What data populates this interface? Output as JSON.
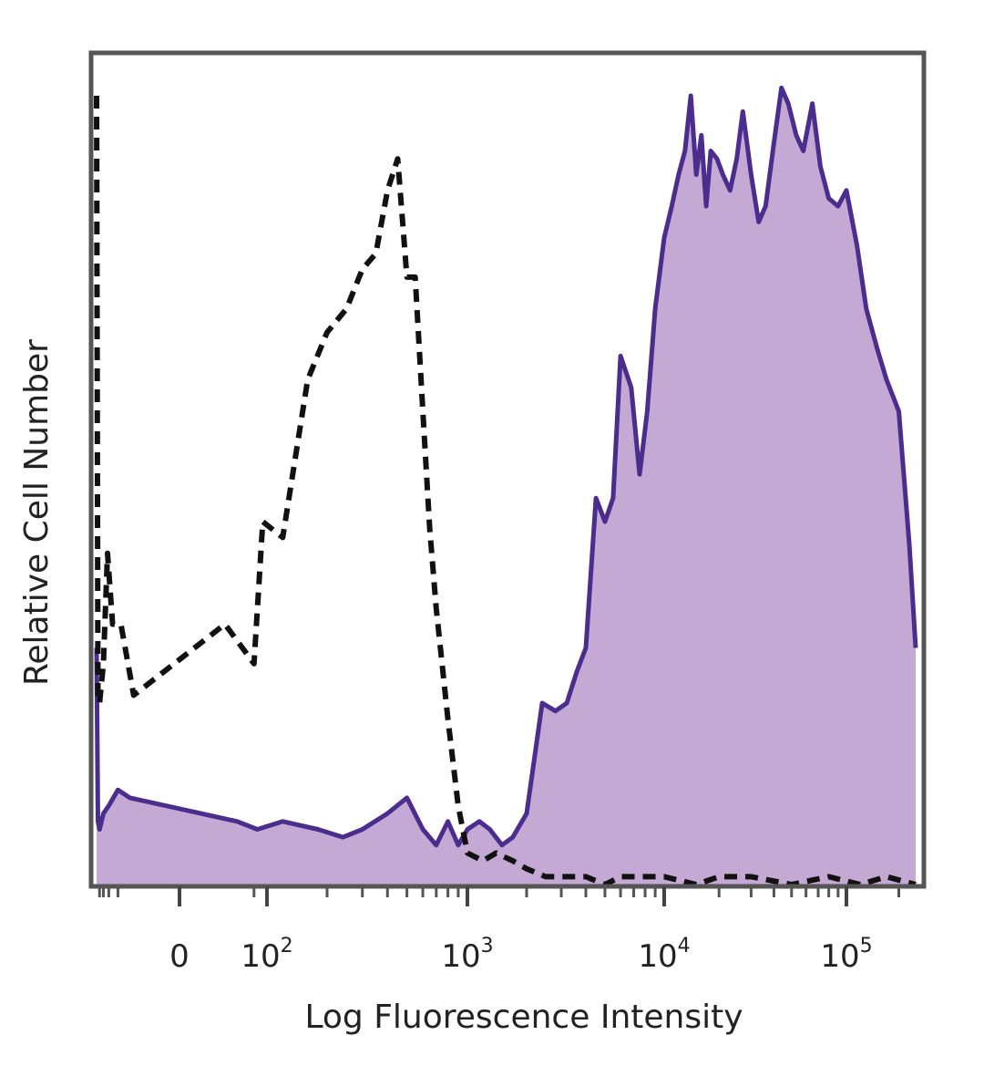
{
  "chart_data": {
    "type": "area",
    "xlabel": "Log Fluorescence Intensity",
    "ylabel": "Relative Cell Number",
    "x_scale": "biexponential",
    "x_ticks": [
      {
        "value": 0,
        "label": "0",
        "exp": ""
      },
      {
        "value": 100,
        "label": "10",
        "exp": "2"
      },
      {
        "value": 1000,
        "label": "10",
        "exp": "3"
      },
      {
        "value": 10000,
        "label": "10",
        "exp": "4"
      },
      {
        "value": 100000,
        "label": "10",
        "exp": "5"
      }
    ],
    "xlim": [
      -500,
      250000
    ],
    "ylim": [
      0,
      100
    ],
    "grid": false,
    "legend": "none",
    "series": [
      {
        "style": "filled",
        "fill": "#c3a9d3",
        "stroke": "#4a2d8c",
        "x": [
          -500,
          -450,
          -400,
          -300,
          -200,
          -100,
          -40,
          20,
          60,
          120,
          180,
          240,
          300,
          400,
          500,
          600,
          700,
          800,
          900,
          1000,
          1150,
          1300,
          1500,
          1700,
          2000,
          2400,
          2800,
          3200,
          3600,
          4000,
          4500,
          5000,
          5500,
          6000,
          6800,
          7500,
          8200,
          9000,
          10000,
          11000,
          12000,
          13000,
          14000,
          15000,
          16000,
          17000,
          18000,
          19500,
          21000,
          23000,
          25000,
          27000,
          30000,
          33000,
          36000,
          40000,
          44000,
          48000,
          53000,
          58000,
          65000,
          72000,
          80000,
          90000,
          100000,
          115000,
          130000,
          150000,
          170000,
          200000,
          230000,
          250000
        ],
        "y": [
          30,
          8,
          7,
          9,
          10,
          12,
          11,
          8,
          7,
          8,
          7,
          6,
          7,
          9,
          11,
          7,
          5,
          8,
          5,
          7,
          8,
          7,
          5,
          6,
          9,
          23,
          22,
          23,
          27,
          30,
          49,
          46,
          49,
          67,
          63,
          52,
          60,
          73,
          82,
          86,
          90,
          93,
          100,
          90,
          95,
          86,
          93,
          92,
          90,
          88,
          92,
          98,
          90,
          84,
          86,
          94,
          101,
          99,
          95,
          93,
          99,
          91,
          87,
          86,
          88,
          81,
          73,
          68,
          64,
          60,
          43,
          30
        ]
      },
      {
        "style": "dashed",
        "stroke": "#111111",
        "x": [
          -500,
          -450,
          -400,
          -300,
          -220,
          -150,
          -80,
          -30,
          10,
          50,
          80,
          120,
          160,
          200,
          250,
          300,
          350,
          400,
          450,
          500,
          550,
          600,
          650,
          700,
          800,
          900,
          1000,
          1200,
          1400,
          1700,
          2000,
          2500,
          3000,
          4000,
          5000,
          6000,
          8000,
          10000,
          15000,
          20000,
          30000,
          50000,
          80000,
          120000,
          170000,
          250000
        ],
        "y": [
          100,
          24,
          23,
          28,
          42,
          33,
          33,
          24,
          33,
          28,
          46,
          44,
          64,
          70,
          73,
          78,
          80,
          88,
          92,
          77,
          77,
          60,
          45,
          35,
          21,
          10,
          4,
          3,
          4,
          3,
          2,
          1,
          1,
          1,
          0,
          1,
          1,
          1,
          0,
          1,
          1,
          0,
          1,
          0,
          1,
          0
        ]
      }
    ]
  }
}
